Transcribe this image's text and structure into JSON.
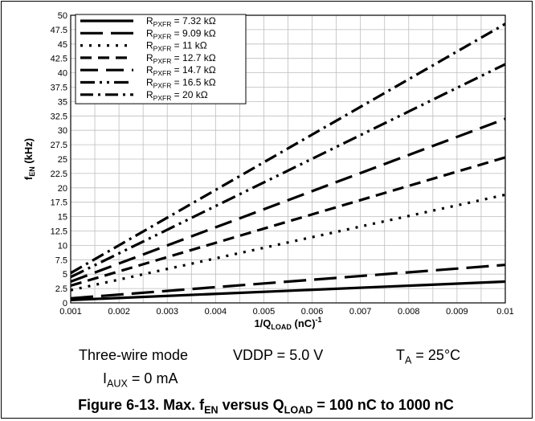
{
  "chart_data": {
    "type": "line",
    "ylabel": {
      "main": "f",
      "sub": "EN",
      "suffix": " (kHz)"
    },
    "xlabel": {
      "main": "1/Q",
      "sub": "LOAD",
      "suffix": " (nC)",
      "sup": "-1"
    },
    "xlim": [
      0.001,
      0.01
    ],
    "ylim": [
      0,
      50
    ],
    "x_ticks": [
      "0.001",
      "0.002",
      "0.003",
      "0.004",
      "0.005",
      "0.006",
      "0.007",
      "0.008",
      "0.009",
      "0.01"
    ],
    "y_ticks": [
      "0",
      "2.5",
      "5",
      "7.5",
      "10",
      "12.5",
      "15",
      "17.5",
      "20",
      "22.5",
      "25",
      "27.5",
      "30",
      "32.5",
      "35",
      "37.5",
      "40",
      "42.5",
      "45",
      "47.5",
      "50"
    ],
    "grid": true,
    "legend_placement": "top-left",
    "series": [
      {
        "name": "R_PXFR = 7.32 kΩ",
        "label_main": "R",
        "label_sub": "PXFR",
        "label_value": " = 7.32 kΩ",
        "dash": "solid",
        "points": [
          [
            0.001,
            0.5
          ],
          [
            0.01,
            3.7
          ]
        ]
      },
      {
        "name": "R_PXFR = 9.09 kΩ",
        "label_main": "R",
        "label_sub": "PXFR",
        "label_value": " = 9.09 kΩ",
        "dash": "long",
        "points": [
          [
            0.001,
            0.8
          ],
          [
            0.01,
            6.6
          ]
        ]
      },
      {
        "name": "R_PXFR = 11 kΩ",
        "label_main": "R",
        "label_sub": "PXFR",
        "label_value": " = 11 kΩ",
        "dash": "dot",
        "points": [
          [
            0.001,
            2.2
          ],
          [
            0.01,
            18.8
          ]
        ]
      },
      {
        "name": "R_PXFR = 12.7 kΩ",
        "label_main": "R",
        "label_sub": "PXFR",
        "label_value": " = 12.7 kΩ",
        "dash": "dash",
        "points": [
          [
            0.001,
            3.0
          ],
          [
            0.01,
            25.3
          ]
        ]
      },
      {
        "name": "R_PXFR = 14.7 kΩ",
        "label_main": "R",
        "label_sub": "PXFR",
        "label_value": " = 14.7 kΩ",
        "dash": "longdash",
        "points": [
          [
            0.001,
            3.7
          ],
          [
            0.01,
            32.0
          ]
        ]
      },
      {
        "name": "R_PXFR = 16.5 kΩ",
        "label_main": "R",
        "label_sub": "PXFR",
        "label_value": " = 16.5 kΩ",
        "dash": "dashdotdot",
        "points": [
          [
            0.001,
            4.5
          ],
          [
            0.01,
            41.5
          ]
        ]
      },
      {
        "name": "R_PXFR = 20 kΩ",
        "label_main": "R",
        "label_sub": "PXFR",
        "label_value": " = 20 kΩ",
        "dash": "dashdot",
        "points": [
          [
            0.001,
            5.2
          ],
          [
            0.01,
            48.5
          ]
        ]
      }
    ]
  },
  "conditions": {
    "mode": "Three-wire mode",
    "vddp": "VDDP = 5.0 V",
    "ta": {
      "main": "T",
      "sub": "A",
      "value": " = 25°C"
    },
    "iaux": {
      "main": "I",
      "sub": "AUX",
      "value": " = 0 mA"
    }
  },
  "caption": {
    "prefix": "Figure 6-13. Max. f",
    "sub1": "EN",
    "middle": " versus Q",
    "sub2": "LOAD",
    "suffix": " = 100 nC to 1000 nC"
  }
}
